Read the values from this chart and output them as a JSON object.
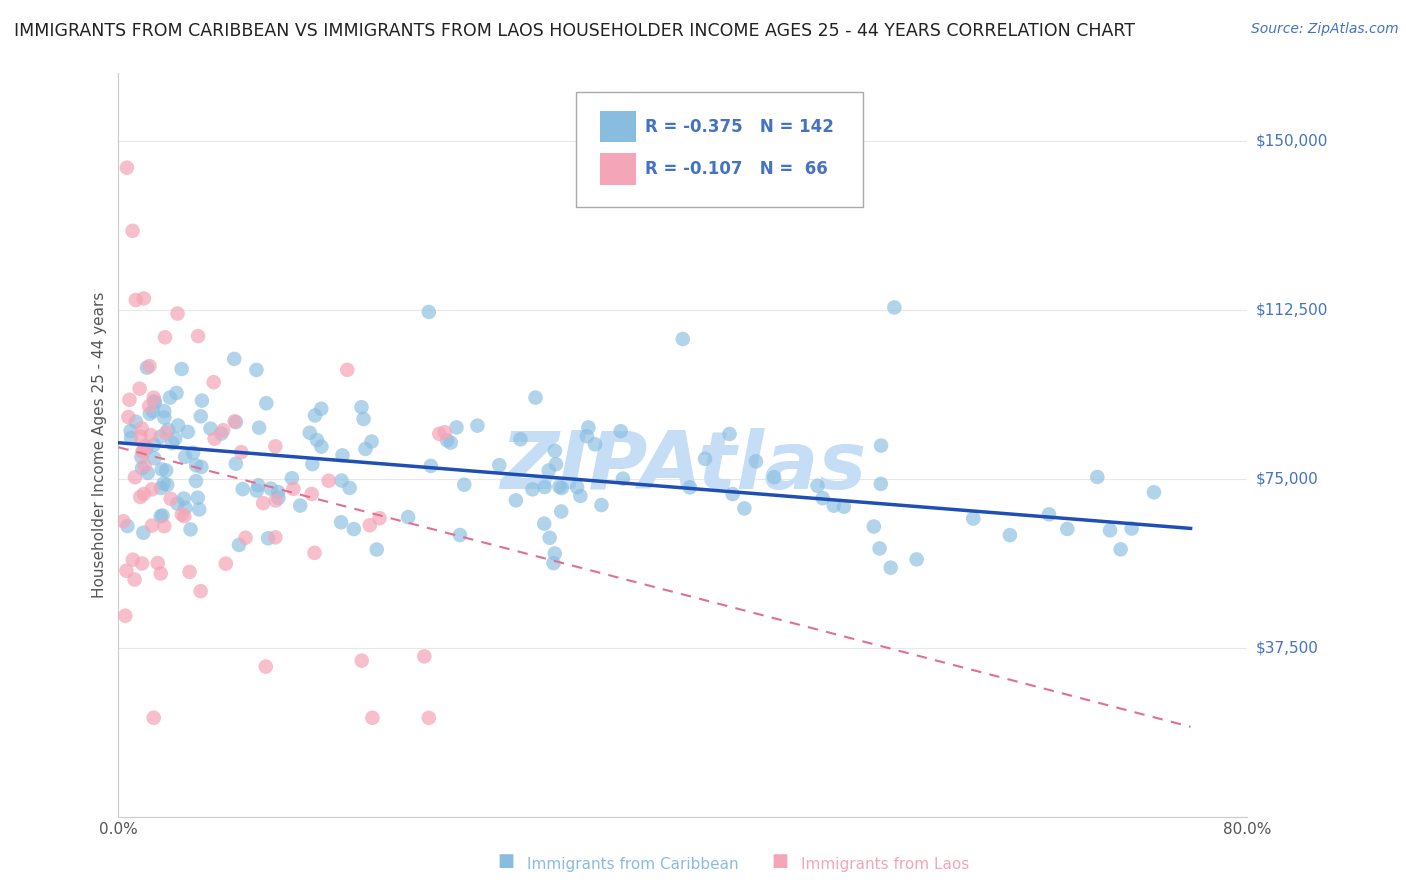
{
  "title": "IMMIGRANTS FROM CARIBBEAN VS IMMIGRANTS FROM LAOS HOUSEHOLDER INCOME AGES 25 - 44 YEARS CORRELATION CHART",
  "source": "Source: ZipAtlas.com",
  "ylabel": "Householder Income Ages 25 - 44 years",
  "yticks": [
    0,
    37500,
    75000,
    112500,
    150000
  ],
  "ytick_labels": [
    "",
    "$37,500",
    "$75,000",
    "$112,500",
    "$150,000"
  ],
  "xmin": 0.0,
  "xmax": 80.0,
  "ymin": 0,
  "ymax": 165000,
  "series1_name": "Immigrants from Caribbean",
  "series1_color": "#89bde0",
  "series1_R": "-0.375",
  "series1_N": "142",
  "series2_name": "Immigrants from Laos",
  "series2_color": "#f4a6b8",
  "series2_R": "-0.107",
  "series2_N": "66",
  "watermark": "ZIPAtlas",
  "watermark_color": "#c5ddf5",
  "legend_text_color": "#4472c4",
  "background_color": "#ffffff",
  "grid_color": "#e8e8e8",
  "title_fontsize": 12.5,
  "source_fontsize": 10,
  "trendline1_color": "#1f4eb5",
  "trendline2_color": "#e07090",
  "trendline1_x0": 0,
  "trendline1_y0": 83000,
  "trendline1_x1": 76,
  "trendline1_y1": 64000,
  "trendline2_x0": 0,
  "trendline2_y0": 82000,
  "trendline2_x1": 76,
  "trendline2_y1": 20000
}
